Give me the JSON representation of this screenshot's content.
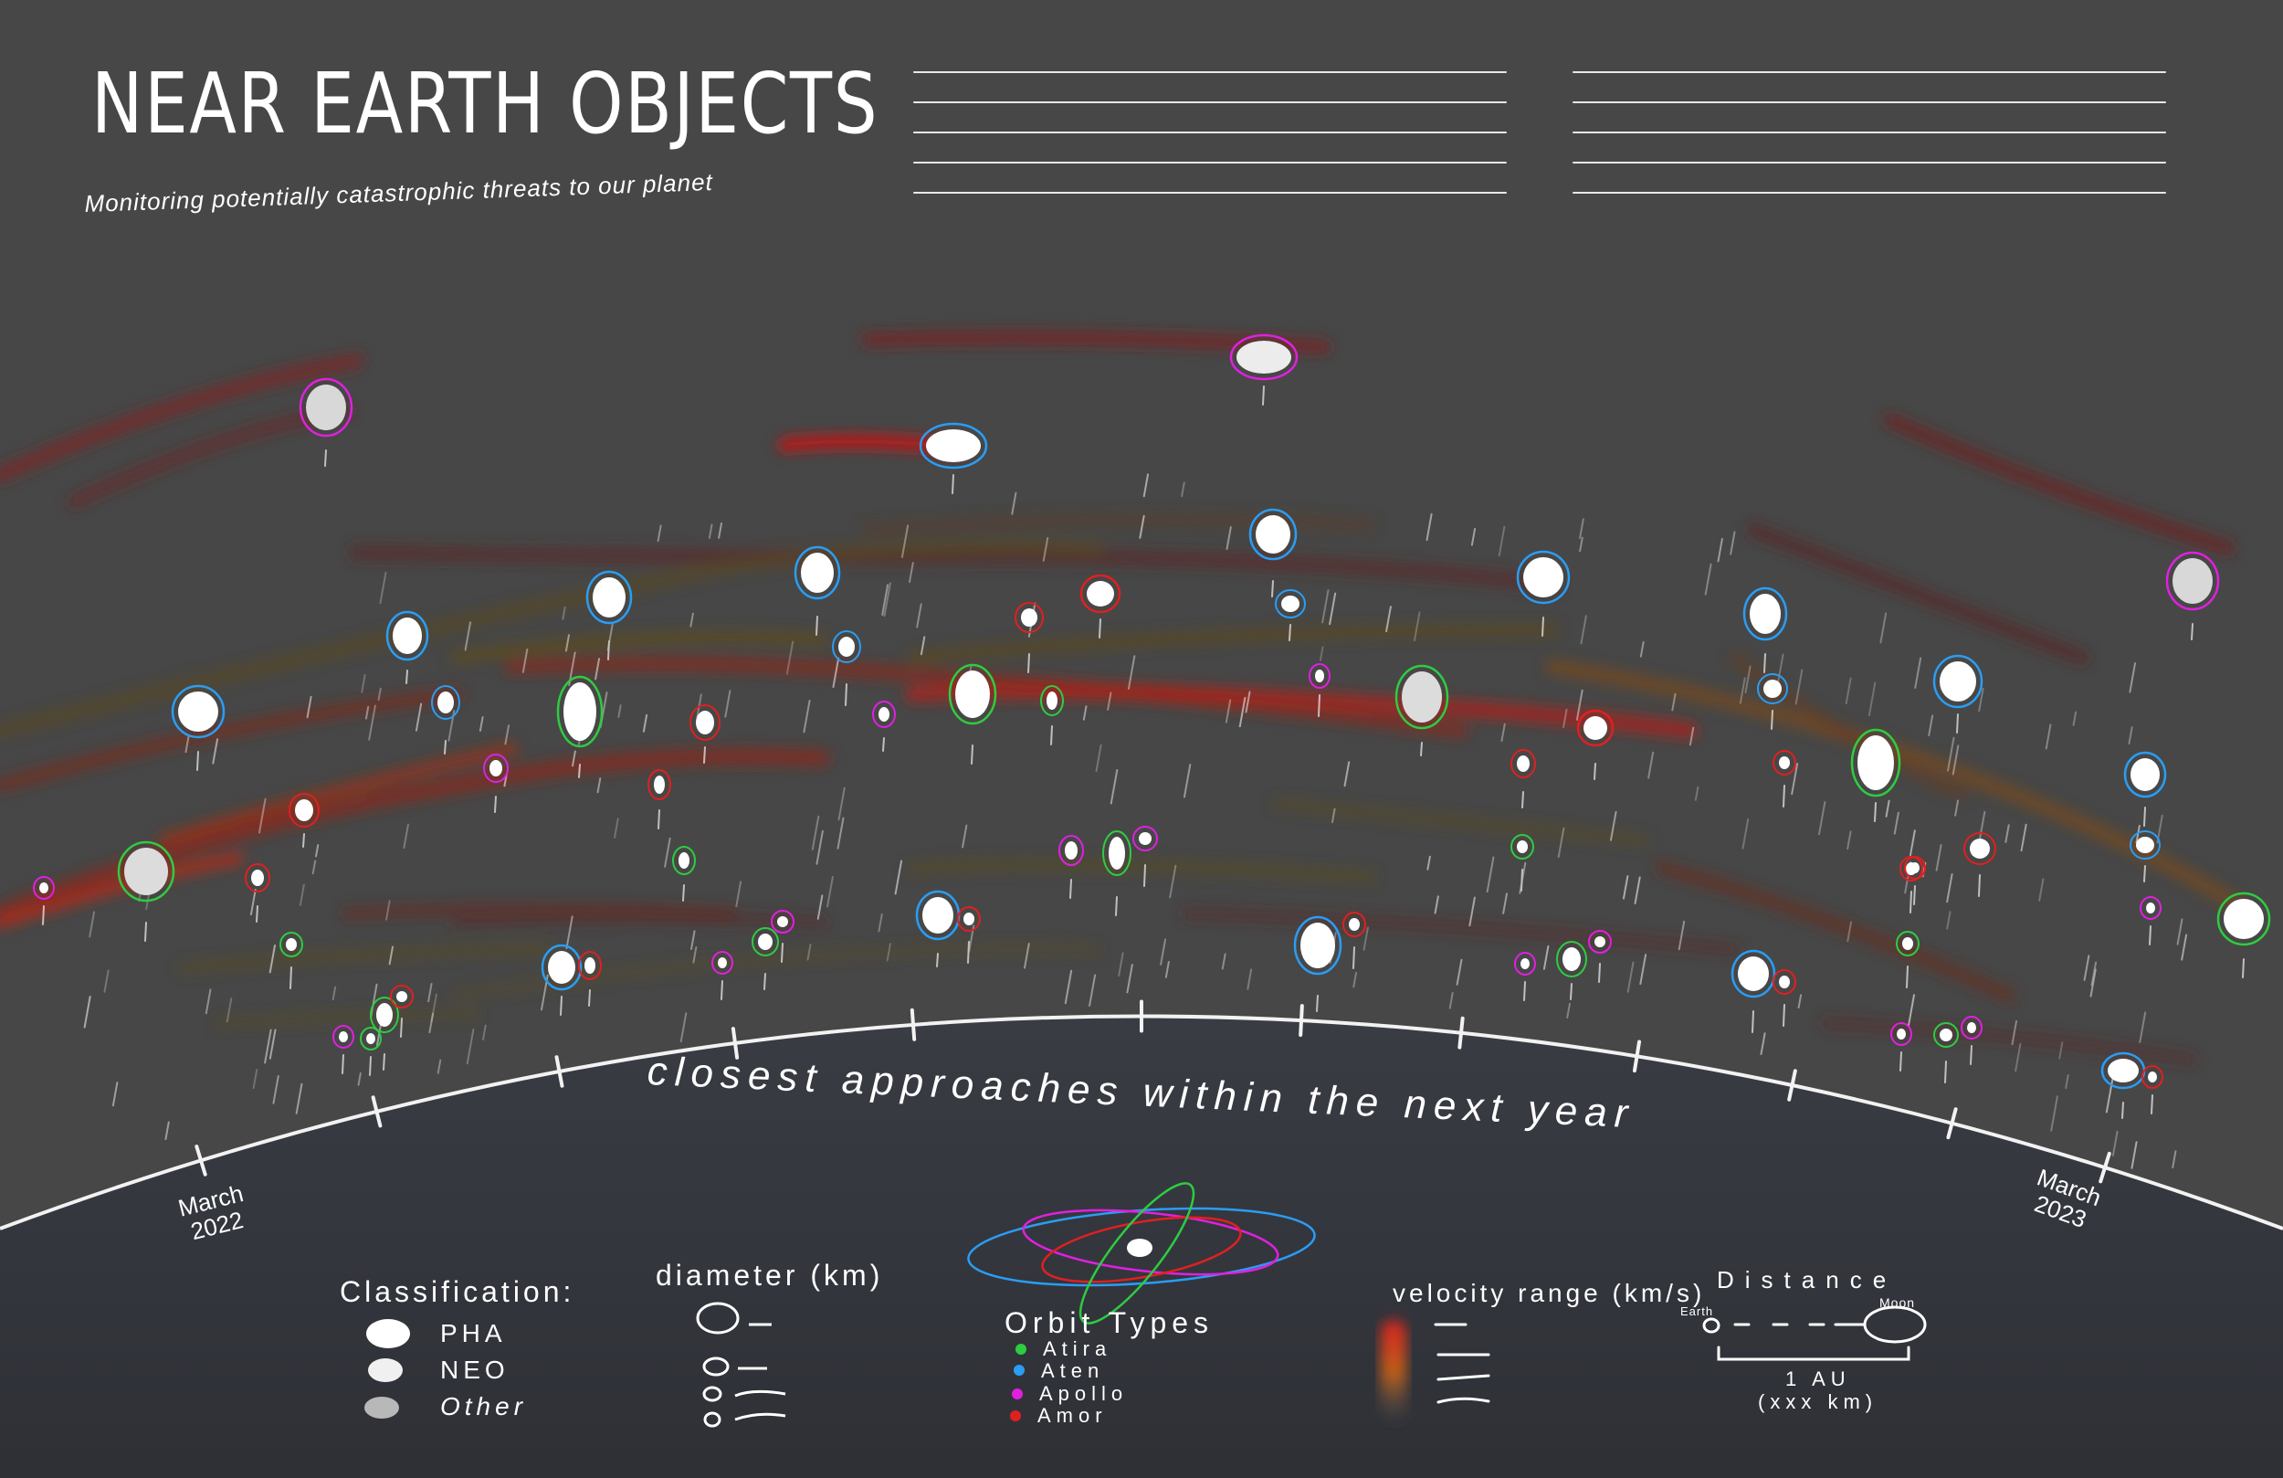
{
  "header": {
    "title": "NEAR EARTH OBJECTS",
    "subtitle": "Monitoring potentially catastrophic threats to our planet"
  },
  "arc": {
    "label": "closest approaches within the next year",
    "start_label_line1": "March",
    "start_label_line2": "2022",
    "end_label_line1": "March",
    "end_label_line2": "2023"
  },
  "legend": {
    "classification": {
      "title": "Classification:",
      "items": [
        "PHA",
        "NEO",
        "Other"
      ]
    },
    "diameter": {
      "title": "diameter (km)"
    },
    "orbit": {
      "title": "Orbit Types",
      "items": [
        {
          "label": "Atira",
          "color": "#2ecc40"
        },
        {
          "label": "Aten",
          "color": "#2a9df4"
        },
        {
          "label": "Apollo",
          "color": "#e020e0"
        },
        {
          "label": "Amor",
          "color": "#e02020"
        }
      ]
    },
    "velocity": {
      "title": "velocity range (km/s)"
    },
    "distance": {
      "title": "Distance",
      "earth_label": "Earth",
      "moon_label": "Moon",
      "scale_label": "1 AU",
      "scale_sub": "(xxx km)"
    }
  },
  "colors": {
    "background": "#474747",
    "ground": "#33353b",
    "atira": "#2ecc40",
    "aten": "#2a9df4",
    "apollo": "#e020e0",
    "amor": "#e02020"
  }
}
